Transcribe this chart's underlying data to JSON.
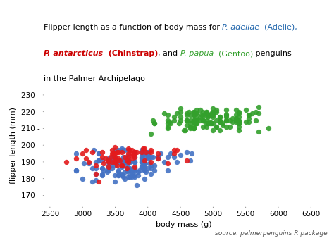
{
  "xlabel": "body mass (g)",
  "ylabel": "flipper length (mm)",
  "source_text": "source: palmerpenguins R package",
  "xlim": [
    2400,
    6700
  ],
  "ylim": [
    163,
    237
  ],
  "xticks": [
    2500,
    3000,
    3500,
    4000,
    4500,
    5000,
    5500,
    6000,
    6500
  ],
  "yticks": [
    170,
    180,
    190,
    200,
    210,
    220,
    230
  ],
  "adelie_color": "#4472c4",
  "chinstrap_color": "#e31a1c",
  "gentoo_color": "#33a02c",
  "marker_size": 28,
  "adelie_data": [
    [
      3750,
      181
    ],
    [
      3800,
      186
    ],
    [
      3250,
      195
    ],
    [
      3450,
      193
    ],
    [
      3650,
      190
    ],
    [
      3625,
      181
    ],
    [
      4675,
      195
    ],
    [
      3475,
      193
    ],
    [
      4250,
      190
    ],
    [
      3300,
      186
    ],
    [
      3700,
      181
    ],
    [
      3200,
      190
    ],
    [
      3800,
      195
    ],
    [
      4400,
      193
    ],
    [
      3700,
      190
    ],
    [
      3450,
      186
    ],
    [
      4500,
      194
    ],
    [
      3325,
      185
    ],
    [
      4200,
      195
    ],
    [
      3400,
      192
    ],
    [
      3600,
      189
    ],
    [
      3800,
      196
    ],
    [
      3950,
      190
    ],
    [
      3800,
      195
    ],
    [
      3800,
      190
    ],
    [
      3550,
      182
    ],
    [
      3200,
      179
    ],
    [
      3150,
      186
    ],
    [
      3950,
      195
    ],
    [
      3250,
      191
    ],
    [
      3900,
      197
    ],
    [
      4150,
      193
    ],
    [
      3950,
      185
    ],
    [
      3550,
      182
    ],
    [
      3300,
      186
    ],
    [
      4650,
      191
    ],
    [
      3150,
      178
    ],
    [
      3900,
      195
    ],
    [
      4100,
      188
    ],
    [
      3600,
      182
    ],
    [
      3900,
      187
    ],
    [
      4150,
      193
    ],
    [
      3700,
      191
    ],
    [
      3800,
      195
    ],
    [
      3500,
      188
    ],
    [
      3950,
      190
    ],
    [
      3600,
      187
    ],
    [
      3550,
      191
    ],
    [
      4300,
      193
    ],
    [
      3400,
      188
    ],
    [
      4450,
      190
    ],
    [
      3300,
      182
    ],
    [
      4300,
      185
    ],
    [
      3700,
      184
    ],
    [
      4350,
      195
    ],
    [
      2900,
      185
    ],
    [
      4100,
      185
    ],
    [
      3725,
      190
    ],
    [
      3000,
      180
    ],
    [
      4000,
      195
    ],
    [
      4600,
      196
    ],
    [
      3425,
      190
    ],
    [
      4025,
      189
    ],
    [
      3700,
      189
    ],
    [
      3650,
      188
    ],
    [
      3700,
      185
    ],
    [
      3725,
      181
    ],
    [
      3750,
      182
    ],
    [
      3900,
      190
    ],
    [
      3650,
      191
    ],
    [
      4150,
      192
    ],
    [
      3200,
      183
    ],
    [
      3800,
      193
    ],
    [
      4000,
      193
    ],
    [
      3400,
      186
    ],
    [
      3600,
      189
    ],
    [
      3600,
      188
    ],
    [
      3800,
      190
    ],
    [
      3950,
      188
    ],
    [
      4000,
      195
    ],
    [
      3500,
      182
    ],
    [
      3900,
      187
    ],
    [
      3975,
      193
    ],
    [
      3725,
      190
    ],
    [
      3250,
      191
    ],
    [
      2900,
      185
    ],
    [
      3650,
      197
    ],
    [
      3550,
      197
    ],
    [
      3800,
      185
    ],
    [
      3675,
      185
    ],
    [
      4000,
      196
    ],
    [
      3200,
      186
    ],
    [
      3950,
      180
    ],
    [
      4050,
      186
    ],
    [
      3950,
      186
    ],
    [
      3650,
      190
    ],
    [
      3700,
      194
    ],
    [
      4000,
      186
    ],
    [
      3600,
      191
    ],
    [
      3500,
      197
    ],
    [
      3900,
      190
    ],
    [
      3800,
      190
    ],
    [
      3975,
      184
    ],
    [
      3025,
      189
    ],
    [
      3250,
      191
    ],
    [
      3550,
      190
    ],
    [
      4050,
      188
    ],
    [
      3800,
      186
    ],
    [
      3950,
      189
    ],
    [
      3300,
      183
    ],
    [
      3800,
      181
    ],
    [
      3750,
      183
    ],
    [
      3700,
      197
    ],
    [
      3950,
      185
    ],
    [
      4050,
      183
    ],
    [
      3600,
      183
    ],
    [
      3600,
      197
    ],
    [
      3700,
      191
    ],
    [
      3900,
      193
    ],
    [
      3850,
      184
    ],
    [
      3950,
      186
    ],
    [
      3925,
      194
    ],
    [
      3725,
      185
    ],
    [
      3100,
      189
    ],
    [
      3500,
      178
    ],
    [
      3400,
      185
    ],
    [
      3300,
      191
    ],
    [
      3775,
      185
    ],
    [
      3550,
      184
    ],
    [
      4075,
      193
    ],
    [
      2900,
      195
    ],
    [
      4000,
      192
    ],
    [
      3425,
      188
    ],
    [
      3600,
      190
    ],
    [
      3600,
      198
    ],
    [
      3625,
      190
    ],
    [
      3400,
      190
    ],
    [
      3175,
      197
    ],
    [
      3800,
      182
    ],
    [
      3825,
      176
    ],
    [
      3950,
      189
    ],
    [
      3650,
      184
    ],
    [
      3500,
      193
    ],
    [
      3700,
      186
    ],
    [
      3800,
      195
    ],
    [
      3900,
      192
    ],
    [
      3425,
      191
    ],
    [
      3250,
      195
    ],
    [
      3875,
      185
    ],
    [
      3625,
      193
    ],
    [
      3550,
      185
    ],
    [
      3775,
      186
    ],
    [
      3375,
      184
    ],
    [
      4050,
      193
    ],
    [
      3650,
      180
    ],
    [
      3850,
      182
    ],
    [
      3900,
      191
    ],
    [
      3725,
      186
    ]
  ],
  "chinstrap_data": [
    [
      3500,
      192
    ],
    [
      3900,
      196
    ],
    [
      3650,
      193
    ],
    [
      3525,
      188
    ],
    [
      3725,
      197
    ],
    [
      3950,
      198
    ],
    [
      3250,
      178
    ],
    [
      3750,
      197
    ],
    [
      4150,
      195
    ],
    [
      3700,
      198
    ],
    [
      3800,
      193
    ],
    [
      3775,
      194
    ],
    [
      3700,
      193
    ],
    [
      4050,
      190
    ],
    [
      3575,
      191
    ],
    [
      4050,
      197
    ],
    [
      3300,
      193
    ],
    [
      3700,
      195
    ],
    [
      3450,
      197
    ],
    [
      4400,
      195
    ],
    [
      3600,
      188
    ],
    [
      3400,
      190
    ],
    [
      2900,
      192
    ],
    [
      3800,
      187
    ],
    [
      3300,
      196
    ],
    [
      4150,
      192
    ],
    [
      3100,
      190
    ],
    [
      4400,
      197
    ],
    [
      3000,
      195
    ],
    [
      4600,
      191
    ],
    [
      3425,
      193
    ],
    [
      3500,
      190
    ],
    [
      3675,
      186
    ],
    [
      3475,
      195
    ],
    [
      3450,
      195
    ],
    [
      3750,
      192
    ],
    [
      4300,
      189
    ],
    [
      3450,
      190
    ],
    [
      4050,
      196
    ],
    [
      2750,
      190
    ],
    [
      3150,
      196
    ],
    [
      3050,
      197
    ],
    [
      3800,
      196
    ],
    [
      3800,
      196
    ],
    [
      3925,
      198
    ],
    [
      3800,
      195
    ],
    [
      3525,
      196
    ],
    [
      3400,
      191
    ],
    [
      3600,
      188
    ],
    [
      3350,
      192
    ],
    [
      3550,
      192
    ],
    [
      3700,
      190
    ],
    [
      3825,
      196
    ],
    [
      4450,
      197
    ],
    [
      3050,
      192
    ],
    [
      3750,
      195
    ],
    [
      3200,
      188
    ],
    [
      3200,
      183
    ],
    [
      3975,
      196
    ],
    [
      3400,
      187
    ],
    [
      3500,
      199
    ],
    [
      3325,
      189
    ],
    [
      3500,
      190
    ],
    [
      3500,
      193
    ],
    [
      3950,
      191
    ],
    [
      3600,
      196
    ],
    [
      3550,
      196
    ],
    [
      3500,
      195
    ],
    [
      3675,
      191
    ]
  ],
  "gentoo_data": [
    [
      5250,
      211
    ],
    [
      5050,
      211
    ],
    [
      4650,
      210
    ],
    [
      5550,
      218
    ],
    [
      4650,
      215
    ],
    [
      5850,
      210
    ],
    [
      5200,
      211
    ],
    [
      5400,
      219
    ],
    [
      5400,
      209
    ],
    [
      4600,
      215
    ],
    [
      5300,
      214
    ],
    [
      5300,
      216
    ],
    [
      4700,
      214
    ],
    [
      4900,
      213
    ],
    [
      4300,
      210
    ],
    [
      4500,
      217
    ],
    [
      4700,
      210
    ],
    [
      5500,
      221
    ],
    [
      4575,
      209
    ],
    [
      5000,
      222
    ],
    [
      5550,
      218
    ],
    [
      4750,
      215
    ],
    [
      5000,
      213
    ],
    [
      5100,
      215
    ],
    [
      5650,
      215
    ],
    [
      4600,
      215
    ],
    [
      5550,
      216
    ],
    [
      5250,
      215
    ],
    [
      4700,
      210
    ],
    [
      4975,
      213
    ],
    [
      4300,
      215
    ],
    [
      4250,
      219
    ],
    [
      5350,
      214
    ],
    [
      5100,
      214
    ],
    [
      4850,
      215
    ],
    [
      4750,
      214
    ],
    [
      5550,
      214
    ],
    [
      5700,
      208
    ],
    [
      4650,
      211
    ],
    [
      5700,
      223
    ],
    [
      4650,
      218
    ],
    [
      4850,
      215
    ],
    [
      4750,
      221
    ],
    [
      5200,
      215
    ],
    [
      4925,
      213
    ],
    [
      4850,
      215
    ],
    [
      5350,
      215
    ],
    [
      4950,
      214
    ],
    [
      4300,
      211
    ],
    [
      4750,
      213
    ],
    [
      4400,
      217
    ],
    [
      4700,
      220
    ],
    [
      4650,
      213
    ],
    [
      5700,
      219
    ],
    [
      4850,
      218
    ],
    [
      4850,
      215
    ],
    [
      5200,
      218
    ],
    [
      5200,
      218
    ],
    [
      5400,
      211
    ],
    [
      4500,
      220
    ],
    [
      5100,
      209
    ],
    [
      5150,
      213
    ],
    [
      5000,
      217
    ],
    [
      5050,
      220
    ],
    [
      4975,
      218
    ],
    [
      4300,
      213
    ],
    [
      4950,
      218
    ],
    [
      4300,
      218
    ],
    [
      4800,
      217
    ],
    [
      4750,
      216
    ],
    [
      4700,
      214
    ],
    [
      5050,
      221
    ],
    [
      4900,
      211
    ],
    [
      4875,
      218
    ],
    [
      4925,
      218
    ],
    [
      4925,
      213
    ],
    [
      4750,
      219
    ],
    [
      5150,
      212
    ],
    [
      5100,
      214
    ],
    [
      4700,
      218
    ],
    [
      5350,
      221
    ],
    [
      5400,
      213
    ],
    [
      4600,
      212
    ],
    [
      4725,
      213
    ],
    [
      4700,
      220
    ],
    [
      5100,
      217
    ],
    [
      5600,
      219
    ],
    [
      5350,
      218
    ],
    [
      5200,
      215
    ],
    [
      5200,
      221
    ],
    [
      5400,
      213
    ],
    [
      4800,
      221
    ],
    [
      4700,
      211
    ],
    [
      4700,
      215
    ],
    [
      5000,
      219
    ],
    [
      4950,
      213
    ],
    [
      4500,
      215
    ],
    [
      4600,
      219
    ],
    [
      5400,
      220
    ],
    [
      4925,
      218
    ],
    [
      5400,
      214
    ],
    [
      4550,
      209
    ],
    [
      4350,
      213
    ],
    [
      5000,
      219
    ],
    [
      5650,
      220
    ],
    [
      4050,
      207
    ],
    [
      5400,
      215
    ],
    [
      4900,
      220
    ],
    [
      4100,
      213
    ],
    [
      5050,
      215
    ],
    [
      4700,
      210
    ],
    [
      5350,
      216
    ],
    [
      4500,
      222
    ],
    [
      4700,
      218
    ],
    [
      4400,
      215
    ],
    [
      4900,
      215
    ],
    [
      5000,
      209
    ],
    [
      4475,
      213
    ],
    [
      5050,
      211
    ],
    [
      4750,
      215
    ],
    [
      4450,
      219
    ],
    [
      4750,
      215
    ],
    [
      4625,
      220
    ],
    [
      4075,
      215
    ],
    [
      4800,
      215
    ],
    [
      4750,
      213
    ],
    [
      5100,
      217
    ],
    [
      4325,
      214
    ],
    [
      4700,
      214
    ],
    [
      4825,
      218
    ],
    [
      5200,
      217
    ],
    [
      5000,
      220
    ],
    [
      5400,
      217
    ],
    [
      5000,
      218
    ],
    [
      5500,
      214
    ],
    [
      4925,
      217
    ],
    [
      4725,
      214
    ],
    [
      4600,
      218
    ],
    [
      4100,
      213
    ],
    [
      4750,
      219
    ],
    [
      4850,
      220
    ],
    [
      4700,
      215
    ],
    [
      4750,
      214
    ],
    [
      4900,
      220
    ],
    [
      4600,
      215
    ],
    [
      4975,
      219
    ],
    [
      4850,
      211
    ]
  ]
}
